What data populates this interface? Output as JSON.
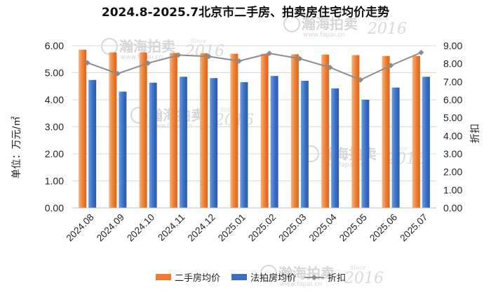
{
  "chart_data": {
    "type": "bar",
    "title": "2024.8-2025.7北京市二手房、拍卖房住宅均价走势",
    "ylabel": "单位：万元/㎡",
    "y2label": "折扣",
    "ylim": [
      0,
      6
    ],
    "y2lim": [
      0,
      9
    ],
    "yticks": [
      "0.00",
      "1.00",
      "2.00",
      "3.00",
      "4.00",
      "5.00",
      "6.00"
    ],
    "y2ticks": [
      "0.00",
      "1.00",
      "2.00",
      "3.00",
      "4.00",
      "5.00",
      "6.00",
      "7.00",
      "8.00",
      "9.00"
    ],
    "categories": [
      "2024.08",
      "2024.09",
      "2024.10",
      "2024.11",
      "2024.12",
      "2025.01",
      "2025.02",
      "2025.03",
      "2025.04",
      "2025.05",
      "2025.06",
      "2025.07"
    ],
    "series": [
      {
        "name": "二手房均价",
        "kind": "bar",
        "axis": "left",
        "color": "#ED7D31",
        "values": [
          5.85,
          5.75,
          5.75,
          5.73,
          5.72,
          5.7,
          5.7,
          5.68,
          5.67,
          5.65,
          5.62,
          5.62
        ]
      },
      {
        "name": "法拍房均价",
        "kind": "bar",
        "axis": "left",
        "color": "#3A6FC4",
        "values": [
          4.73,
          4.3,
          4.63,
          4.85,
          4.8,
          4.65,
          4.88,
          4.7,
          4.42,
          4.0,
          4.45,
          4.85
        ]
      },
      {
        "name": "折扣",
        "kind": "line",
        "axis": "right",
        "color": "#8C8C8C",
        "values": [
          8.05,
          7.45,
          8.03,
          8.48,
          8.4,
          8.15,
          8.57,
          8.28,
          7.79,
          7.1,
          7.9,
          8.62
        ]
      }
    ],
    "legend_position": "bottom",
    "grid": "horizontal"
  },
  "watermark": {
    "name": "瀚海拍卖",
    "url": "www.fapai.cn",
    "since": "Since",
    "year": "2016"
  }
}
